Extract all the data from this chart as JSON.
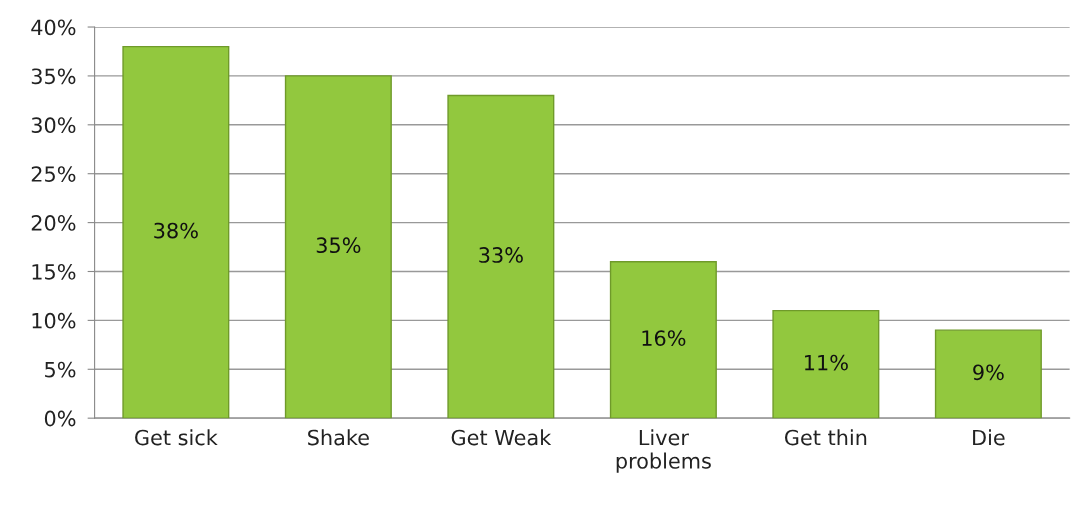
{
  "chart_data": {
    "type": "bar",
    "categories": [
      "Get sick",
      "Shake",
      "Get Weak",
      "Liver\nproblems",
      "Get thin",
      "Die"
    ],
    "values": [
      38,
      35,
      33,
      16,
      11,
      9
    ],
    "value_labels": [
      "38%",
      "35%",
      "33%",
      "16%",
      "11%",
      "9%"
    ],
    "color": "#92c83e",
    "ylim": [
      0,
      40
    ],
    "yticks": [
      {
        "value": 0,
        "label": "0%"
      },
      {
        "value": 5,
        "label": "5%"
      },
      {
        "value": 10,
        "label": "10%"
      },
      {
        "value": 15,
        "label": "15%"
      },
      {
        "value": 20,
        "label": "20%"
      },
      {
        "value": 25,
        "label": "25%"
      },
      {
        "value": 30,
        "label": "30%"
      },
      {
        "value": 35,
        "label": "35%"
      },
      {
        "value": 40,
        "label": "40%"
      }
    ],
    "grid": "y"
  }
}
